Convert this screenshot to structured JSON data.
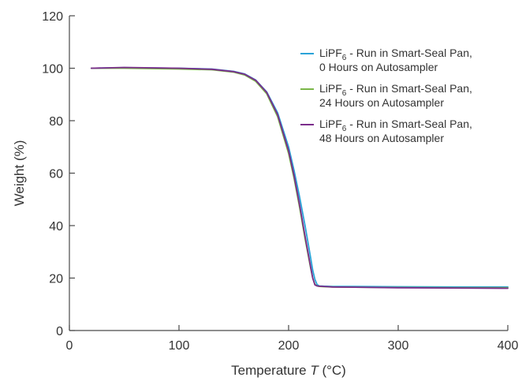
{
  "chart_data": {
    "type": "line",
    "title": "",
    "xlabel": "Temperature T (°C)",
    "xlabel_parts": [
      "Temperature ",
      "T",
      " (°C)"
    ],
    "ylabel": "Weight (%)",
    "xlim": [
      0,
      400
    ],
    "ylim": [
      0,
      120
    ],
    "xticks": [
      0,
      100,
      200,
      300,
      400
    ],
    "yticks": [
      0,
      20,
      40,
      60,
      80,
      100,
      120
    ],
    "grid": false,
    "legend_position": "top-right",
    "series": [
      {
        "name": "LiPF6 - Run in Smart-Seal Pan, 0 Hours on Autosampler",
        "legend_lines": [
          "LiPF",
          "6",
          " - Run in Smart-Seal Pan,",
          "0 Hours on Autosampler"
        ],
        "color": "#2aa3d8",
        "x": [
          20,
          50,
          100,
          130,
          150,
          160,
          170,
          180,
          190,
          200,
          205,
          210,
          215,
          220,
          222,
          224,
          226,
          228,
          232,
          240,
          260,
          300,
          350,
          400
        ],
        "y": [
          100,
          100.2,
          100,
          99.7,
          98.8,
          97.8,
          95.5,
          91,
          83,
          70,
          61,
          51,
          40,
          28,
          23,
          19.5,
          17.5,
          17,
          16.9,
          16.8,
          16.8,
          16.7,
          16.6,
          16.6
        ]
      },
      {
        "name": "LiPF6 - Run in Smart-Seal Pan, 24 Hours on Autosampler",
        "legend_lines": [
          "LiPF",
          "6",
          " - Run in Smart-Seal Pan,",
          "24 Hours on Autosampler"
        ],
        "color": "#7ab648",
        "x": [
          20,
          50,
          100,
          130,
          150,
          160,
          170,
          180,
          190,
          200,
          205,
          210,
          215,
          220,
          222,
          224,
          226,
          228,
          232,
          240,
          260,
          300,
          350,
          400
        ],
        "y": [
          100,
          100,
          99.7,
          99.4,
          98.5,
          97.4,
          95,
          90.3,
          81.5,
          67.5,
          58,
          47,
          35,
          24,
          20,
          17.6,
          17,
          16.8,
          16.7,
          16.6,
          16.5,
          16.4,
          16.3,
          16.3
        ]
      },
      {
        "name": "LiPF6 - Run in Smart-Seal Pan, 48 Hours on Autosampler",
        "legend_lines": [
          "LiPF",
          "6",
          " - Run in Smart-Seal Pan,",
          "48 Hours on Autosampler"
        ],
        "color": "#7b2d8b",
        "x": [
          20,
          50,
          100,
          130,
          150,
          160,
          170,
          180,
          190,
          200,
          205,
          210,
          215,
          220,
          222,
          224,
          226,
          228,
          232,
          240,
          260,
          300,
          350,
          400
        ],
        "y": [
          100,
          100.3,
          100,
          99.6,
          98.7,
          97.7,
          95.4,
          90.8,
          82.3,
          68.5,
          59,
          48,
          36,
          24.5,
          20,
          17.4,
          17,
          16.9,
          16.8,
          16.6,
          16.5,
          16.3,
          16.2,
          16.1
        ]
      }
    ]
  }
}
